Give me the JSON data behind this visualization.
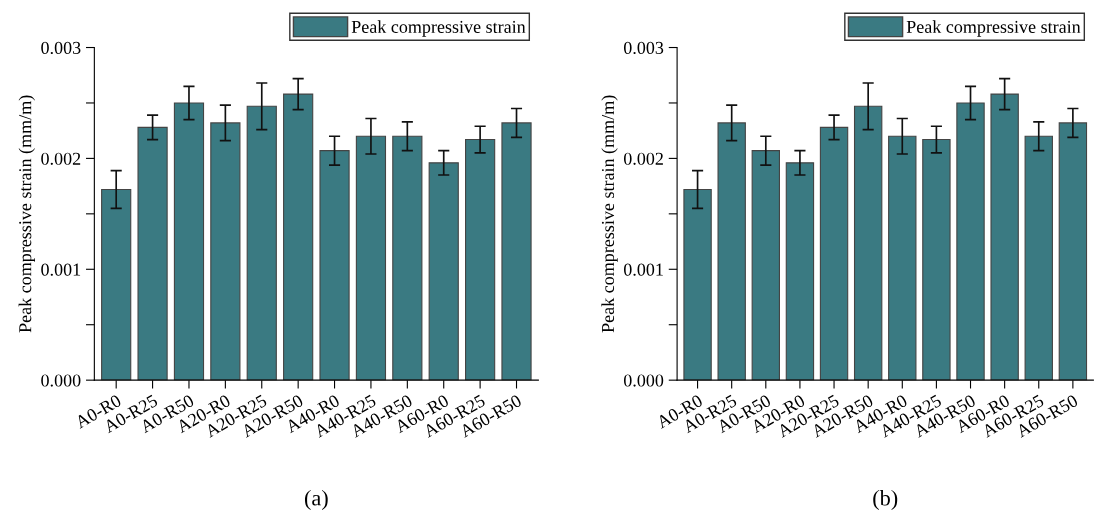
{
  "chart_data": [
    {
      "type": "bar",
      "annotations": [
        "(a)"
      ],
      "ylabel": "Peak compressive strain (mm/m)",
      "legend": "top right",
      "grid": false,
      "categories": [
        "A0-R0",
        "A0-R25",
        "A0-R50",
        "A20-R0",
        "A20-R25",
        "A20-R50",
        "A40-R0",
        "A40-R25",
        "A40-R50",
        "A60-R0",
        "A60-R25",
        "A60-R50"
      ],
      "series": [
        {
          "name": "Peak compressive strain",
          "color": "#3a7a82",
          "values": [
            0.00172,
            0.00228,
            0.0025,
            0.00232,
            0.00247,
            0.00258,
            0.00207,
            0.0022,
            0.0022,
            0.00196,
            0.00217,
            0.00232
          ],
          "errors": [
            0.00017,
            0.00011,
            0.00015,
            0.00016,
            0.00021,
            0.00014,
            0.00013,
            0.00016,
            0.00013,
            0.00011,
            0.00012,
            0.00013
          ]
        }
      ],
      "ylim": [
        0,
        0.003
      ],
      "yticks": [
        {
          "value": 0,
          "label": "0.000"
        },
        {
          "value": 0.0005,
          "label": null
        },
        {
          "value": 0.001,
          "label": "0.001"
        },
        {
          "value": 0.0015,
          "label": null
        },
        {
          "value": 0.002,
          "label": "0.002"
        },
        {
          "value": 0.0025,
          "label": null
        },
        {
          "value": 0.003,
          "label": "0.003"
        }
      ]
    },
    {
      "type": "bar",
      "annotations": [
        "(b)"
      ],
      "ylabel": "Peak compressive strain (mm/m)",
      "legend": "top right",
      "grid": false,
      "categories": [
        "A0-R0",
        "A0-R25",
        "A0-R50",
        "A20-R0",
        "A20-R25",
        "A20-R50",
        "A40-R0",
        "A40-R25",
        "A40-R50",
        "A60-R0",
        "A60-R25",
        "A60-R50"
      ],
      "series": [
        {
          "name": "Peak compressive strain",
          "color": "#3a7a82",
          "values": [
            0.00172,
            0.00232,
            0.00207,
            0.00196,
            0.00228,
            0.00247,
            0.0022,
            0.00217,
            0.0025,
            0.00258,
            0.0022,
            0.00232
          ],
          "errors": [
            0.00017,
            0.00016,
            0.00013,
            0.00011,
            0.00011,
            0.00021,
            0.00016,
            0.00012,
            0.00015,
            0.00014,
            0.00013,
            0.00013
          ]
        }
      ],
      "ylim": [
        0,
        0.003
      ],
      "yticks": [
        {
          "value": 0,
          "label": "0.000"
        },
        {
          "value": 0.0005,
          "label": null
        },
        {
          "value": 0.001,
          "label": "0.001"
        },
        {
          "value": 0.0015,
          "label": null
        },
        {
          "value": 0.002,
          "label": "0.002"
        },
        {
          "value": 0.0025,
          "label": null
        },
        {
          "value": 0.003,
          "label": "0.003"
        }
      ]
    }
  ]
}
